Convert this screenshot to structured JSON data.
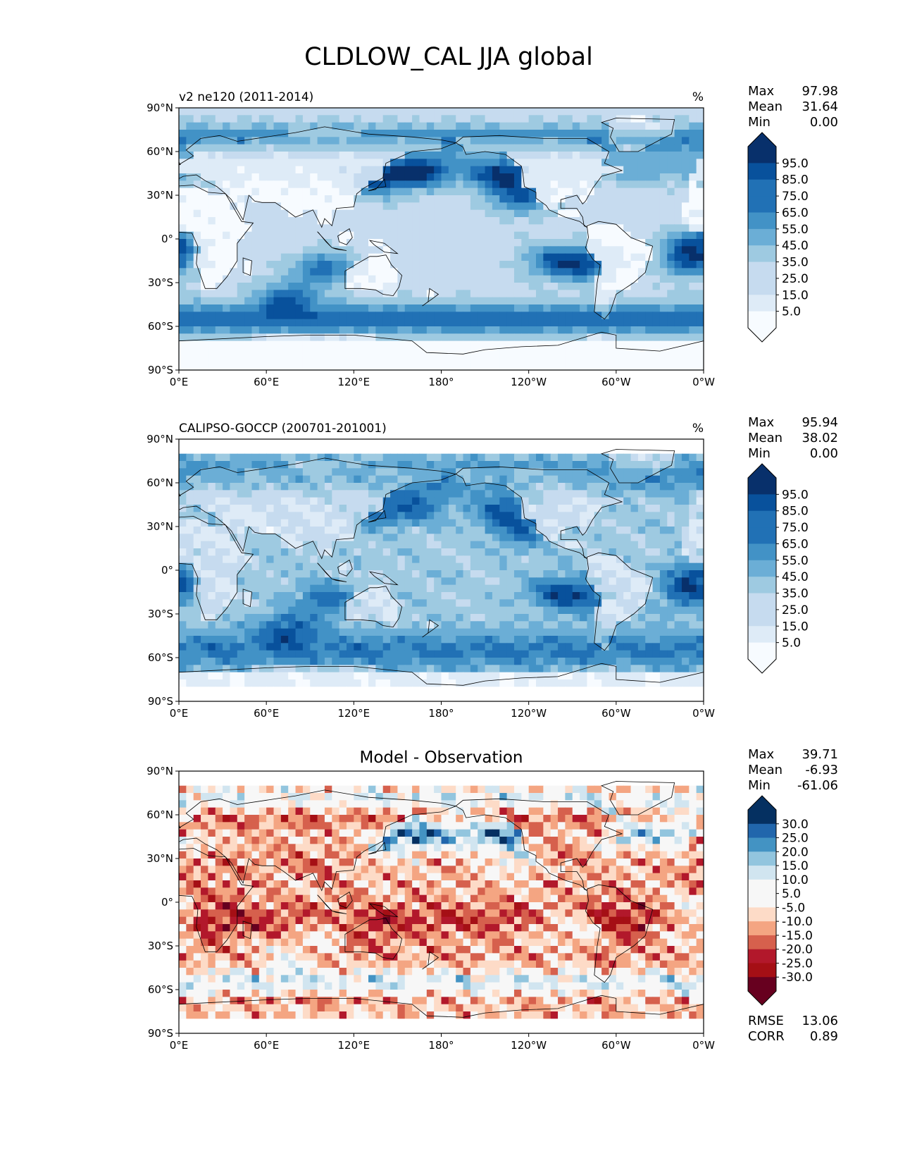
{
  "title": "CLDLOW_CAL JJA global",
  "colors": {
    "blues": [
      "#f7fbff",
      "#deebf7",
      "#c6dbef",
      "#9ecae1",
      "#6baed6",
      "#4292c6",
      "#2171b5",
      "#08519c",
      "#08306b"
    ],
    "diff": [
      "#67001f",
      "#a50f15",
      "#b2182b",
      "#d6604d",
      "#f4a582",
      "#fddbc7",
      "#f7f7f7",
      "#f7f7f7",
      "#d1e5f0",
      "#92c5de",
      "#4393c3",
      "#2166ac",
      "#053061"
    ],
    "land_outline": "#000000"
  },
  "chart_data": [
    {
      "type": "heatmap",
      "name": "",
      "left_title": "v2 ne120 (2011-2014)",
      "units": "%",
      "center_title": "",
      "xticks": [
        "0°E",
        "60°E",
        "120°E",
        "180°",
        "120°W",
        "60°W",
        "0°W"
      ],
      "yticks": [
        "90°N",
        "60°N",
        "30°N",
        "0°",
        "30°S",
        "60°S",
        "90°S"
      ],
      "xlim": [
        0,
        360
      ],
      "ylim": [
        -90,
        90
      ],
      "stats": [
        [
          "Max",
          "97.98"
        ],
        [
          "Mean",
          "31.64"
        ],
        [
          "Min",
          "0.00"
        ]
      ],
      "colorbar": {
        "ticks": [
          "95.0",
          "85.0",
          "75.0",
          "65.0",
          "55.0",
          "45.0",
          "35.0",
          "25.0",
          "15.0",
          "5.0"
        ],
        "extend": "both",
        "palette": "blues"
      },
      "footer_stats": [],
      "field": "model"
    },
    {
      "type": "heatmap",
      "name": "",
      "left_title": "CALIPSO-GOCCP (200701-201001)",
      "units": "%",
      "center_title": "",
      "xticks": [
        "0°E",
        "60°E",
        "120°E",
        "180°",
        "120°W",
        "60°W",
        "0°W"
      ],
      "yticks": [
        "90°N",
        "60°N",
        "30°N",
        "0°",
        "30°S",
        "60°S",
        "90°S"
      ],
      "xlim": [
        0,
        360
      ],
      "ylim": [
        -90,
        90
      ],
      "stats": [
        [
          "Max",
          "95.94"
        ],
        [
          "Mean",
          "38.02"
        ],
        [
          "Min",
          "0.00"
        ]
      ],
      "colorbar": {
        "ticks": [
          "95.0",
          "85.0",
          "75.0",
          "65.0",
          "55.0",
          "45.0",
          "35.0",
          "25.0",
          "15.0",
          "5.0"
        ],
        "extend": "both",
        "palette": "blues"
      },
      "footer_stats": [],
      "field": "obs"
    },
    {
      "type": "heatmap",
      "name": "",
      "left_title": "",
      "units": "",
      "center_title": "Model - Observation",
      "xticks": [
        "0°E",
        "60°E",
        "120°E",
        "180°",
        "120°W",
        "60°W",
        "0°W"
      ],
      "yticks": [
        "90°N",
        "60°N",
        "30°N",
        "0°",
        "30°S",
        "60°S",
        "90°S"
      ],
      "xlim": [
        0,
        360
      ],
      "ylim": [
        -90,
        90
      ],
      "stats": [
        [
          "Max",
          "39.71"
        ],
        [
          "Mean",
          "-6.93"
        ],
        [
          "Min",
          "-61.06"
        ]
      ],
      "colorbar": {
        "ticks": [
          "30.0",
          "25.0",
          "20.0",
          "15.0",
          "10.0",
          "5.0",
          "-5.0",
          "-10.0",
          "-15.0",
          "-20.0",
          "-25.0",
          "-30.0"
        ],
        "extend": "both",
        "palette": "diff"
      },
      "footer_stats": [
        [
          "RMSE",
          "13.06"
        ],
        [
          "CORR",
          "0.89"
        ]
      ],
      "field": "diff"
    }
  ]
}
